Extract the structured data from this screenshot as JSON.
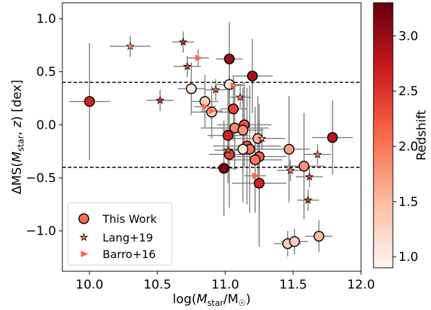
{
  "chart_data": {
    "type": "scatter",
    "xlabel_prefix": "log(",
    "xlabel_italic": "M",
    "xlabel_sub": "star",
    "xlabel_suffix": "/M",
    "xlabel_sun_sub": "☉",
    "xlabel_close": ")",
    "ylabel_parts": [
      "ΔMS(",
      "M",
      "star",
      ", ",
      "z",
      ") [dex]"
    ],
    "colorbar_label": "Redshift",
    "xlim": [
      9.8,
      12.0
    ],
    "ylim": [
      -1.38,
      1.15
    ],
    "x_ticks": [
      "10.0",
      "10.5",
      "11.0",
      "11.5",
      "12.0"
    ],
    "y_ticks": [
      "1.0",
      "0.5",
      "0.0",
      "−0.5",
      "−1.0"
    ],
    "colorbar_ticks": [
      "1.0",
      "1.5",
      "2.0",
      "2.5",
      "3.0"
    ],
    "colorbar_range": [
      0.9,
      3.3
    ],
    "hlines": [
      0.4,
      -0.4
    ],
    "legend": {
      "placement": "lower-left",
      "entries": [
        "This Work",
        "Lang+19",
        "Barro+16"
      ]
    },
    "series": [
      {
        "name": "This Work",
        "marker": "circle",
        "points": [
          {
            "x": 10.0,
            "y": 0.22,
            "z": 2.6,
            "xerr": 0.15,
            "yerr": 0.55
          },
          {
            "x": 11.03,
            "y": 0.62,
            "z": 3.0,
            "xerr": 0.1,
            "yerr": 0.35
          },
          {
            "x": 11.2,
            "y": 0.46,
            "z": 2.9,
            "xerr": 0.15,
            "yerr": 0.35
          },
          {
            "x": 11.03,
            "y": 0.38,
            "z": 1.0,
            "xerr": 0.1,
            "yerr": 0.3
          },
          {
            "x": 10.75,
            "y": 0.34,
            "z": 1.05,
            "xerr": 0.1,
            "yerr": 0.25
          },
          {
            "x": 10.85,
            "y": 0.22,
            "z": 1.3,
            "xerr": 0.1,
            "yerr": 0.25
          },
          {
            "x": 10.9,
            "y": 0.12,
            "z": 1.2,
            "xerr": 0.15,
            "yerr": 0.25
          },
          {
            "x": 11.06,
            "y": 0.15,
            "z": 2.4,
            "xerr": 0.1,
            "yerr": 0.3
          },
          {
            "x": 11.07,
            "y": -0.03,
            "z": 1.9,
            "xerr": 0.25,
            "yerr": 0.4
          },
          {
            "x": 11.02,
            "y": -0.1,
            "z": 2.6,
            "xerr": 0.15,
            "yerr": 0.45
          },
          {
            "x": 11.14,
            "y": 0.0,
            "z": 2.3,
            "xerr": 0.2,
            "yerr": 0.4
          },
          {
            "x": 11.13,
            "y": -0.05,
            "z": 1.8,
            "xerr": 0.15,
            "yerr": 0.4
          },
          {
            "x": 11.24,
            "y": -0.13,
            "z": 1.6,
            "xerr": 0.2,
            "yerr": 0.4
          },
          {
            "x": 11.16,
            "y": -0.2,
            "z": 2.2,
            "xerr": 0.25,
            "yerr": 0.55
          },
          {
            "x": 11.18,
            "y": -0.23,
            "z": 2.0,
            "xerr": 0.2,
            "yerr": 0.6
          },
          {
            "x": 11.13,
            "y": -0.23,
            "z": 1.0,
            "xerr": 0.15,
            "yerr": 0.5
          },
          {
            "x": 11.03,
            "y": -0.28,
            "z": 2.4,
            "xerr": 0.15,
            "yerr": 0.5
          },
          {
            "x": 11.25,
            "y": -0.3,
            "z": 2.2,
            "xerr": 0.2,
            "yerr": 0.5
          },
          {
            "x": 11.22,
            "y": -0.33,
            "z": 2.0,
            "xerr": 0.2,
            "yerr": 0.5
          },
          {
            "x": 11.47,
            "y": -0.23,
            "z": 1.7,
            "xerr": 0.15,
            "yerr": 0.5
          },
          {
            "x": 11.58,
            "y": -0.39,
            "z": 1.8,
            "xerr": 0.15,
            "yerr": 0.5
          },
          {
            "x": 10.99,
            "y": -0.41,
            "z": 3.2,
            "xerr": 0.1,
            "yerr": 0.45
          },
          {
            "x": 11.25,
            "y": -0.55,
            "z": 2.6,
            "xerr": 0.2,
            "yerr": 0.6
          },
          {
            "x": 11.79,
            "y": -0.12,
            "z": 2.8,
            "xerr": 0.15,
            "yerr": 0.35
          },
          {
            "x": 11.46,
            "y": -1.12,
            "z": 1.3,
            "xerr": 0.1,
            "yerr": 0.12
          },
          {
            "x": 11.51,
            "y": -1.1,
            "z": 1.3,
            "xerr": 0.1,
            "yerr": 0.12
          },
          {
            "x": 11.69,
            "y": -1.05,
            "z": 1.5,
            "xerr": 0.1,
            "yerr": 0.15
          }
        ]
      },
      {
        "name": "Lang+19",
        "marker": "star",
        "points": [
          {
            "x": 10.3,
            "y": 0.74,
            "z": 1.7,
            "xerr": 0.15,
            "yerr": 0.1
          },
          {
            "x": 10.69,
            "y": 0.78,
            "z": 2.6,
            "xerr": 0.08,
            "yerr": 0.1
          },
          {
            "x": 10.72,
            "y": 0.55,
            "z": 2.4,
            "xerr": 0.1,
            "yerr": 0.1
          },
          {
            "x": 10.52,
            "y": 0.23,
            "z": 2.5,
            "xerr": 0.1,
            "yerr": 0.1
          },
          {
            "x": 10.93,
            "y": 0.33,
            "z": 2.2,
            "xerr": 0.08,
            "yerr": 0.1
          },
          {
            "x": 11.11,
            "y": 0.26,
            "z": 2.0,
            "xerr": 0.08,
            "yerr": 0.1
          },
          {
            "x": 11.27,
            "y": -0.13,
            "z": 1.8,
            "xerr": 0.1,
            "yerr": 0.1
          },
          {
            "x": 11.02,
            "y": -0.24,
            "z": 2.3,
            "xerr": 0.1,
            "yerr": 0.1
          },
          {
            "x": 11.48,
            "y": -0.43,
            "z": 2.0,
            "xerr": 0.1,
            "yerr": 0.1
          },
          {
            "x": 11.68,
            "y": -0.28,
            "z": 2.0,
            "xerr": 0.1,
            "yerr": 0.1
          },
          {
            "x": 11.62,
            "y": -0.49,
            "z": 2.4,
            "xerr": 0.1,
            "yerr": 0.1
          },
          {
            "x": 11.61,
            "y": -0.71,
            "z": 2.5,
            "xerr": 0.08,
            "yerr": 0.1
          }
        ]
      },
      {
        "name": "Barro+16",
        "marker": "triangle-right",
        "points": [
          {
            "x": 10.8,
            "y": 0.63,
            "z": 2.2,
            "xerr": 0.08,
            "yerr": 0.08
          },
          {
            "x": 10.85,
            "y": 0.17,
            "z": 2.2,
            "xerr": 0.08,
            "yerr": 0.08
          },
          {
            "x": 10.9,
            "y": 0.13,
            "z": 2.2,
            "xerr": 0.08,
            "yerr": 0.08
          },
          {
            "x": 11.06,
            "y": 0.37,
            "z": 2.2,
            "xerr": 0.08,
            "yerr": 0.08
          },
          {
            "x": 11.22,
            "y": -0.48,
            "z": 2.2,
            "xerr": 0.08,
            "yerr": 0.08
          }
        ]
      }
    ]
  }
}
